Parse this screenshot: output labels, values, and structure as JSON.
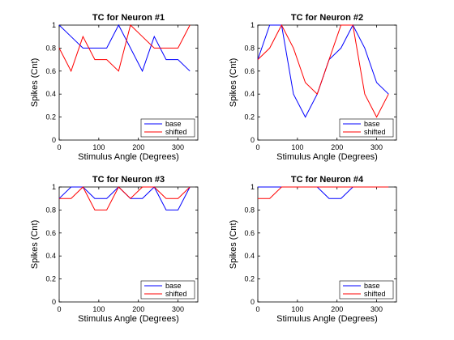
{
  "chart_data": [
    {
      "type": "line",
      "title": "TC for Neuron #1",
      "xlabel": "Stimulus Angle (Degrees)",
      "ylabel": "Spikes (Cnt)",
      "xlim": [
        0,
        350
      ],
      "ylim": [
        0,
        1
      ],
      "xticks": [
        0,
        100,
        200,
        300
      ],
      "yticks": [
        0,
        0.2,
        0.4,
        0.6,
        0.8,
        1
      ],
      "xtick_labels": [
        "0",
        "100",
        "200",
        "300"
      ],
      "ytick_labels": [
        "0",
        "0.2",
        "0.4",
        "0.6",
        "0.8",
        "1"
      ],
      "legend_position": "bottom-right",
      "x": [
        0,
        30,
        60,
        90,
        120,
        150,
        180,
        210,
        240,
        270,
        300,
        330
      ],
      "series": [
        {
          "name": "base",
          "color": "#0000ff",
          "values": [
            1.0,
            0.9,
            0.8,
            0.8,
            0.8,
            1.0,
            0.8,
            0.6,
            0.9,
            0.7,
            0.7,
            0.6
          ]
        },
        {
          "name": "shifted",
          "color": "#ff0000",
          "values": [
            0.8,
            0.6,
            0.9,
            0.7,
            0.7,
            0.6,
            1.0,
            0.9,
            0.8,
            0.8,
            0.8,
            1.0
          ]
        }
      ]
    },
    {
      "type": "line",
      "title": "TC for Neuron #2",
      "xlabel": "Stimulus Angle (Degrees)",
      "ylabel": "Spikes (Cnt)",
      "xlim": [
        0,
        350
      ],
      "ylim": [
        0,
        1
      ],
      "xticks": [
        0,
        100,
        200,
        300
      ],
      "yticks": [
        0,
        0.2,
        0.4,
        0.6,
        0.8,
        1
      ],
      "xtick_labels": [
        "0",
        "100",
        "200",
        "300"
      ],
      "ytick_labels": [
        "0",
        "0.2",
        "0.4",
        "0.6",
        "0.8",
        "1"
      ],
      "legend_position": "bottom-right",
      "x": [
        0,
        30,
        60,
        90,
        120,
        150,
        180,
        210,
        240,
        270,
        300,
        330
      ],
      "series": [
        {
          "name": "base",
          "color": "#0000ff",
          "values": [
            0.7,
            1.0,
            1.0,
            0.4,
            0.2,
            0.4,
            0.7,
            0.8,
            1.0,
            0.8,
            0.5,
            0.4
          ]
        },
        {
          "name": "shifted",
          "color": "#ff0000",
          "values": [
            0.7,
            0.8,
            1.0,
            0.8,
            0.5,
            0.4,
            0.7,
            1.0,
            1.0,
            0.4,
            0.2,
            0.4
          ]
        }
      ]
    },
    {
      "type": "line",
      "title": "TC for Neuron #3",
      "xlabel": "Stimulus Angle (Degrees)",
      "ylabel": "Spikes (Cnt)",
      "xlim": [
        0,
        350
      ],
      "ylim": [
        0,
        1
      ],
      "xticks": [
        0,
        100,
        200,
        300
      ],
      "yticks": [
        0,
        0.2,
        0.4,
        0.6,
        0.8,
        1
      ],
      "xtick_labels": [
        "0",
        "100",
        "200",
        "300"
      ],
      "ytick_labels": [
        "0",
        "0.2",
        "0.4",
        "0.6",
        "0.8",
        "1"
      ],
      "legend_position": "bottom-right",
      "x": [
        0,
        30,
        60,
        90,
        120,
        150,
        180,
        210,
        240,
        270,
        300,
        330
      ],
      "series": [
        {
          "name": "base",
          "color": "#0000ff",
          "values": [
            0.9,
            1.0,
            1.0,
            0.9,
            0.9,
            1.0,
            0.9,
            0.9,
            1.0,
            0.8,
            0.8,
            1.0
          ]
        },
        {
          "name": "shifted",
          "color": "#ff0000",
          "values": [
            0.9,
            0.9,
            1.0,
            0.8,
            0.8,
            1.0,
            0.9,
            1.0,
            1.0,
            0.9,
            0.9,
            1.0
          ]
        }
      ]
    },
    {
      "type": "line",
      "title": "TC for Neuron #4",
      "xlabel": "Stimulus Angle (Degrees)",
      "ylabel": "Spikes (Cnt)",
      "xlim": [
        0,
        350
      ],
      "ylim": [
        0,
        1
      ],
      "xticks": [
        0,
        100,
        200,
        300
      ],
      "yticks": [
        0,
        0.2,
        0.4,
        0.6,
        0.8,
        1
      ],
      "xtick_labels": [
        "0",
        "100",
        "200",
        "300"
      ],
      "ytick_labels": [
        "0",
        "0.2",
        "0.4",
        "0.6",
        "0.8",
        "1"
      ],
      "legend_position": "bottom-right",
      "x": [
        0,
        30,
        60,
        90,
        120,
        150,
        180,
        210,
        240,
        270,
        300,
        330
      ],
      "series": [
        {
          "name": "base",
          "color": "#0000ff",
          "values": [
            1.0,
            1.0,
            1.0,
            1.0,
            1.0,
            1.0,
            0.9,
            0.9,
            1.0,
            1.0,
            1.0,
            1.0
          ]
        },
        {
          "name": "shifted",
          "color": "#ff0000",
          "values": [
            0.9,
            0.9,
            1.0,
            1.0,
            1.0,
            1.0,
            1.0,
            1.0,
            1.0,
            1.0,
            1.0,
            1.0
          ]
        }
      ]
    }
  ]
}
